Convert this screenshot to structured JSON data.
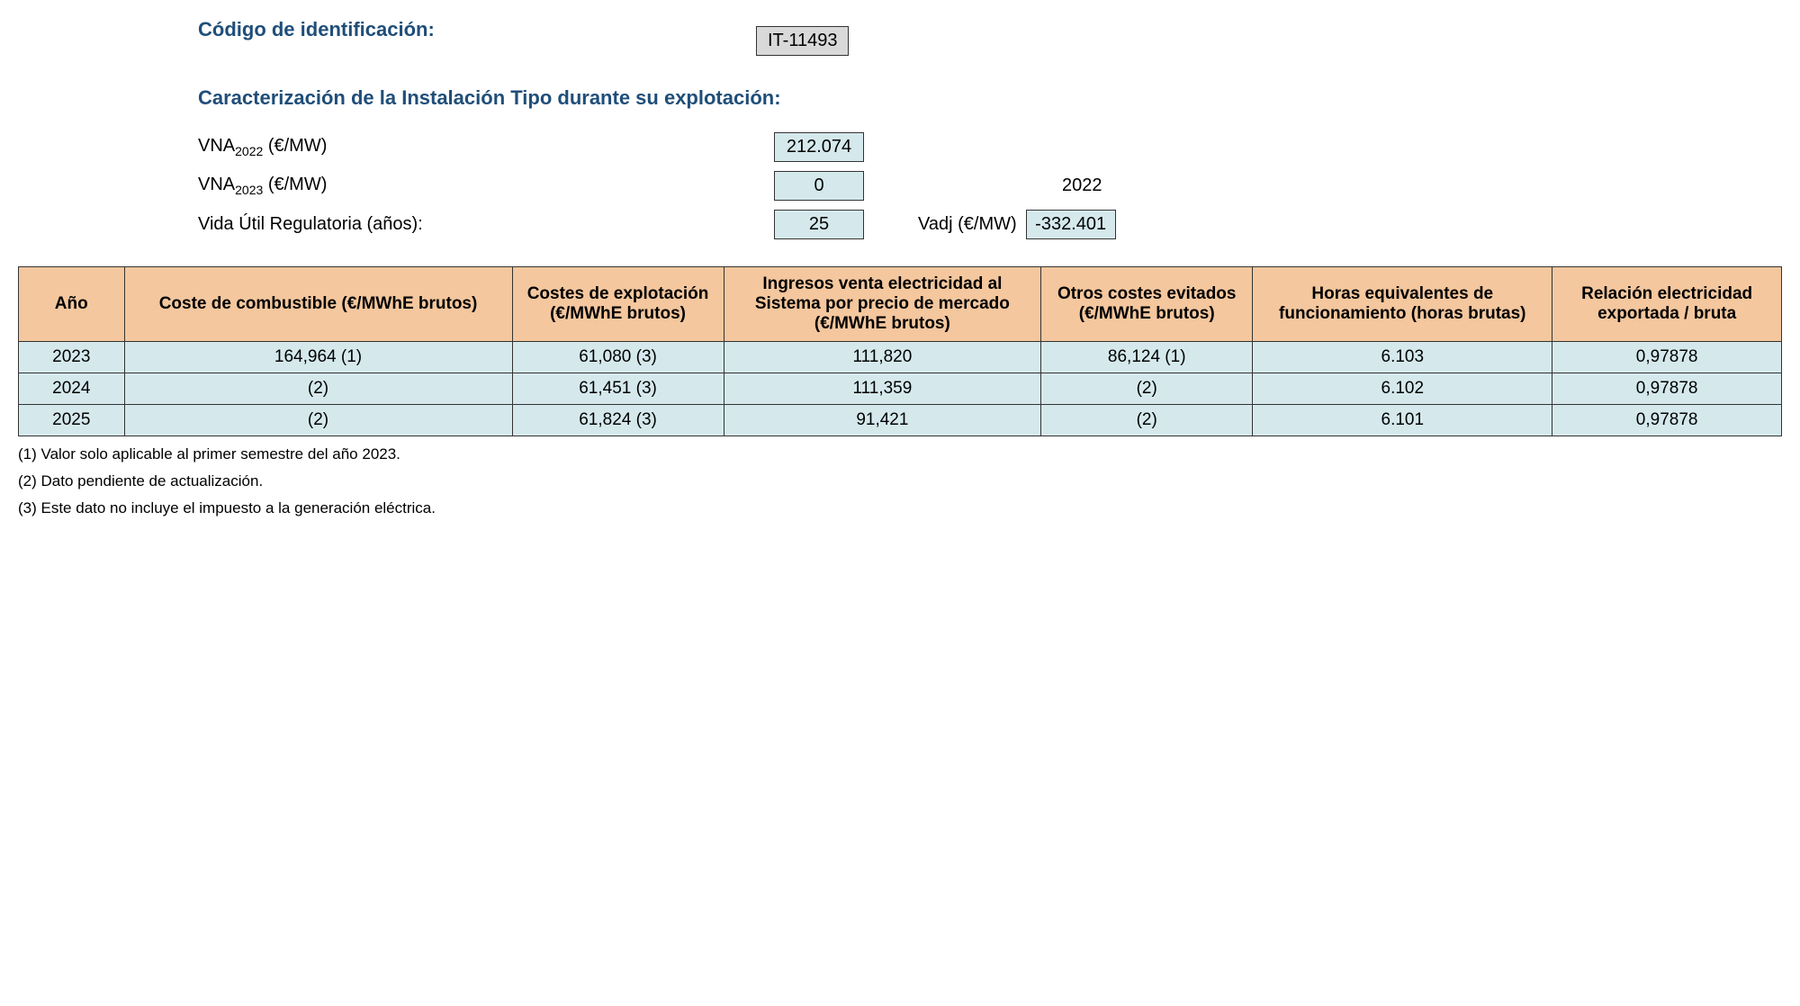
{
  "header": {
    "id_label": "Código de identificación:",
    "id_value": "IT-11493",
    "char_title": "Caracterización de la Instalación Tipo durante su explotación:"
  },
  "params": {
    "vna2022_label_prefix": "VNA",
    "vna2022_sub": "2022",
    "vna2022_unit": " (€/MW)",
    "vna2022_value": "212.074",
    "vna2023_label_prefix": "VNA",
    "vna2023_sub": "2023",
    "vna2023_unit": " (€/MW)",
    "vna2023_value": "0",
    "year_right": "2022",
    "vida_label": "Vida Útil Regulatoria (años):",
    "vida_value": "25",
    "vadj_label": "Vadj (€/MW)",
    "vadj_value": "-332.401"
  },
  "table": {
    "columns": [
      "Año",
      "Coste de combustible (€/MWhE brutos)",
      "Costes de explotación (€/MWhE brutos)",
      "Ingresos venta electricidad al Sistema por precio de mercado (€/MWhE brutos)",
      "Otros costes evitados (€/MWhE brutos)",
      "Horas equivalentes de funcionamiento (horas brutas)",
      "Relación electricidad exportada / bruta"
    ],
    "rows": [
      [
        "2023",
        "164,964 (1)",
        "61,080 (3)",
        "111,820",
        "86,124 (1)",
        "6.103",
        "0,97878"
      ],
      [
        "2024",
        "(2)",
        "61,451 (3)",
        "111,359",
        "(2)",
        "6.102",
        "0,97878"
      ],
      [
        "2025",
        "(2)",
        "61,824 (3)",
        "91,421",
        "(2)",
        "6.101",
        "0,97878"
      ]
    ],
    "col_widths": [
      "6%",
      "22%",
      "12%",
      "18%",
      "12%",
      "17%",
      "13%"
    ]
  },
  "footnotes": [
    "(1) Valor solo aplicable al primer semestre del año 2023.",
    "(2) Dato pendiente de actualización.",
    "(3) Este dato no incluye el impuesto a la generación eléctrica."
  ],
  "colors": {
    "header_bg": "#f4c79e",
    "cell_bg": "#d5e9ed",
    "code_bg": "#d9d9d9",
    "title_color": "#1f4e79",
    "border_color": "#333333"
  }
}
